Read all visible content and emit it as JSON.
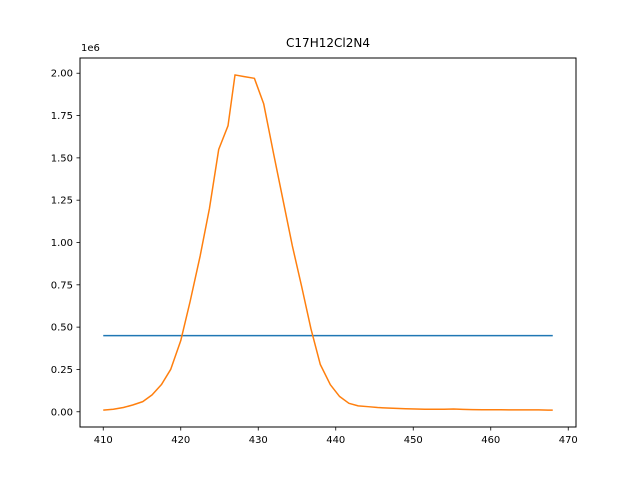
{
  "chart_data": {
    "type": "line",
    "title": "C17H12Cl2N4",
    "xlabel": "",
    "ylabel": "",
    "y_offset_label": "1e6",
    "xlim": [
      407,
      471
    ],
    "ylim": [
      -0.09,
      2.09
    ],
    "x_ticks": [
      410,
      420,
      430,
      440,
      450,
      460,
      470
    ],
    "x_tick_labels": [
      "410",
      "420",
      "430",
      "440",
      "450",
      "460",
      "470"
    ],
    "y_ticks": [
      0.0,
      0.25,
      0.5,
      0.75,
      1.0,
      1.25,
      1.5,
      1.75,
      2.0
    ],
    "y_tick_labels": [
      "0.00",
      "0.25",
      "0.50",
      "0.75",
      "1.00",
      "1.25",
      "1.50",
      "1.75",
      "2.00"
    ],
    "grid": false,
    "series": [
      {
        "color": "#1f77b4",
        "x": [
          410,
          468
        ],
        "y": [
          0.45,
          0.45
        ]
      },
      {
        "color": "#ff7f0e",
        "x": [
          410,
          411.3,
          412.6,
          413.8,
          415.1,
          416.3,
          417.5,
          418.7,
          420.0,
          421.2,
          422.5,
          423.7,
          424.9,
          426.1,
          427.0,
          428.2,
          429.5,
          430.7,
          432.0,
          433.2,
          434.4,
          435.6,
          436.8,
          438.0,
          439.3,
          440.5,
          441.7,
          442.9,
          444.2,
          445.4,
          446.6,
          447.8,
          449.0,
          450.3,
          451.5,
          452.7,
          454.0,
          455.2,
          456.4,
          457.6,
          458.9,
          460.1,
          461.3,
          462.5,
          463.8,
          465.0,
          466.2,
          467.4,
          468.0
        ],
        "y": [
          0.01,
          0.015,
          0.025,
          0.04,
          0.06,
          0.1,
          0.16,
          0.25,
          0.42,
          0.65,
          0.92,
          1.2,
          1.55,
          1.69,
          1.99,
          1.98,
          1.97,
          1.82,
          1.52,
          1.25,
          0.98,
          0.74,
          0.49,
          0.28,
          0.16,
          0.09,
          0.05,
          0.035,
          0.03,
          0.025,
          0.022,
          0.02,
          0.018,
          0.016,
          0.015,
          0.015,
          0.015,
          0.016,
          0.014,
          0.013,
          0.012,
          0.012,
          0.012,
          0.011,
          0.011,
          0.011,
          0.011,
          0.01,
          0.01
        ]
      }
    ]
  }
}
